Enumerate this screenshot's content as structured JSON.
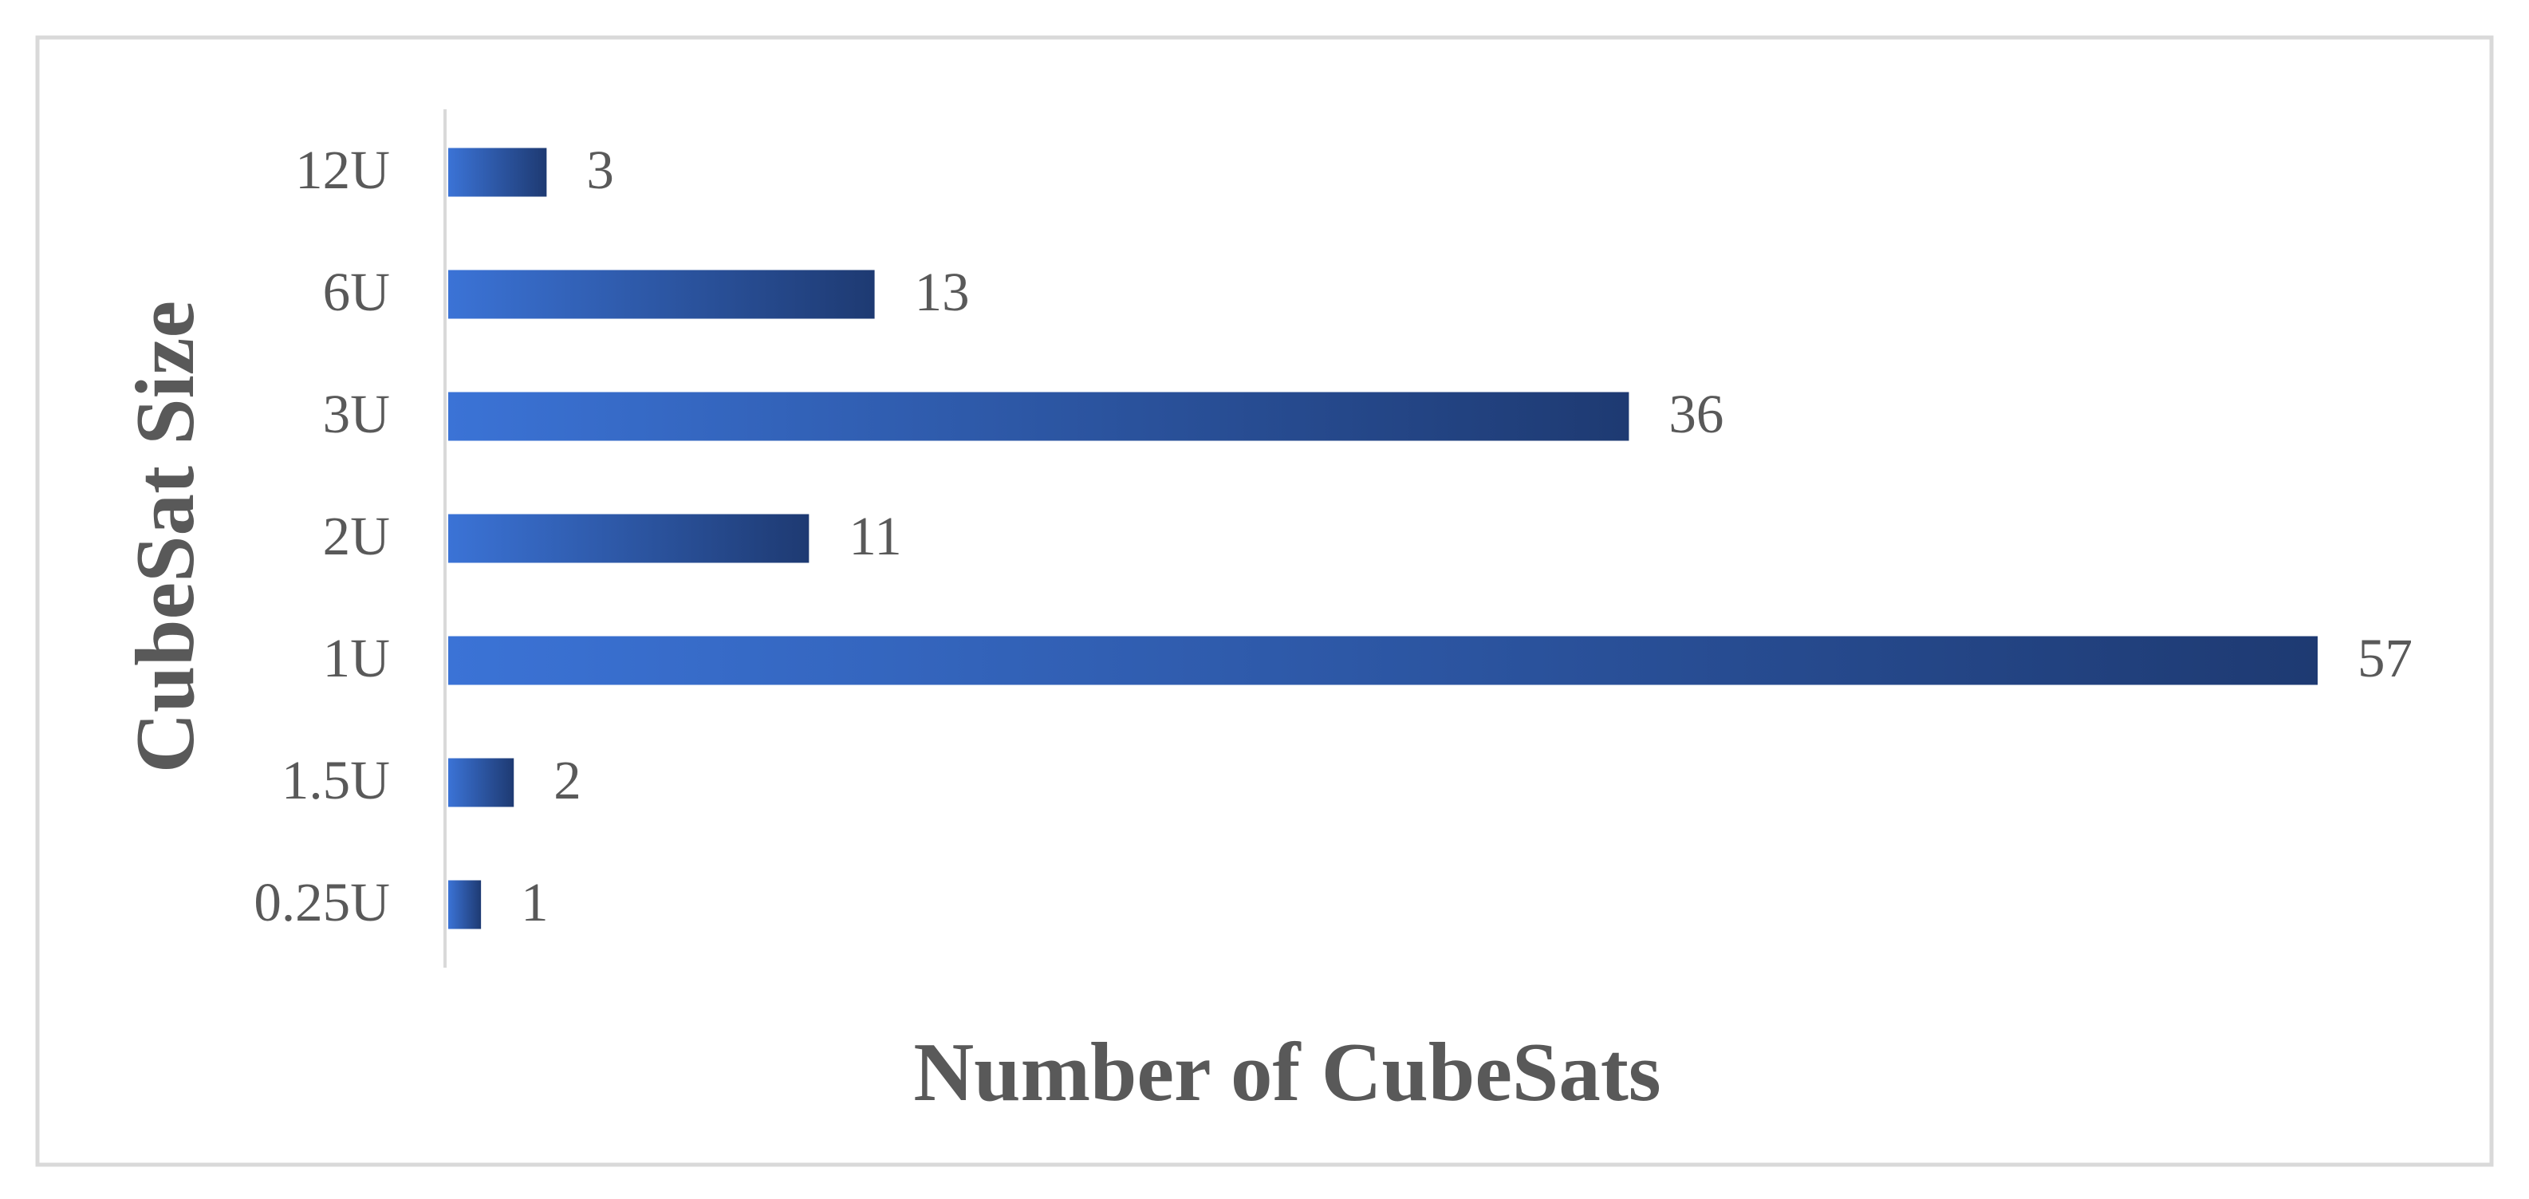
{
  "chart_data": {
    "type": "bar",
    "orientation": "horizontal",
    "categories": [
      "0.25U",
      "1.5U",
      "1U",
      "2U",
      "3U",
      "6U",
      "12U"
    ],
    "values": [
      1,
      2,
      57,
      11,
      36,
      13,
      3
    ],
    "gradient_colors": [
      "#3b73d6",
      "#1e3a72"
    ],
    "x_label": "Number of CubeSats",
    "y_label": "CubeSat Size",
    "data_labels": true
  }
}
